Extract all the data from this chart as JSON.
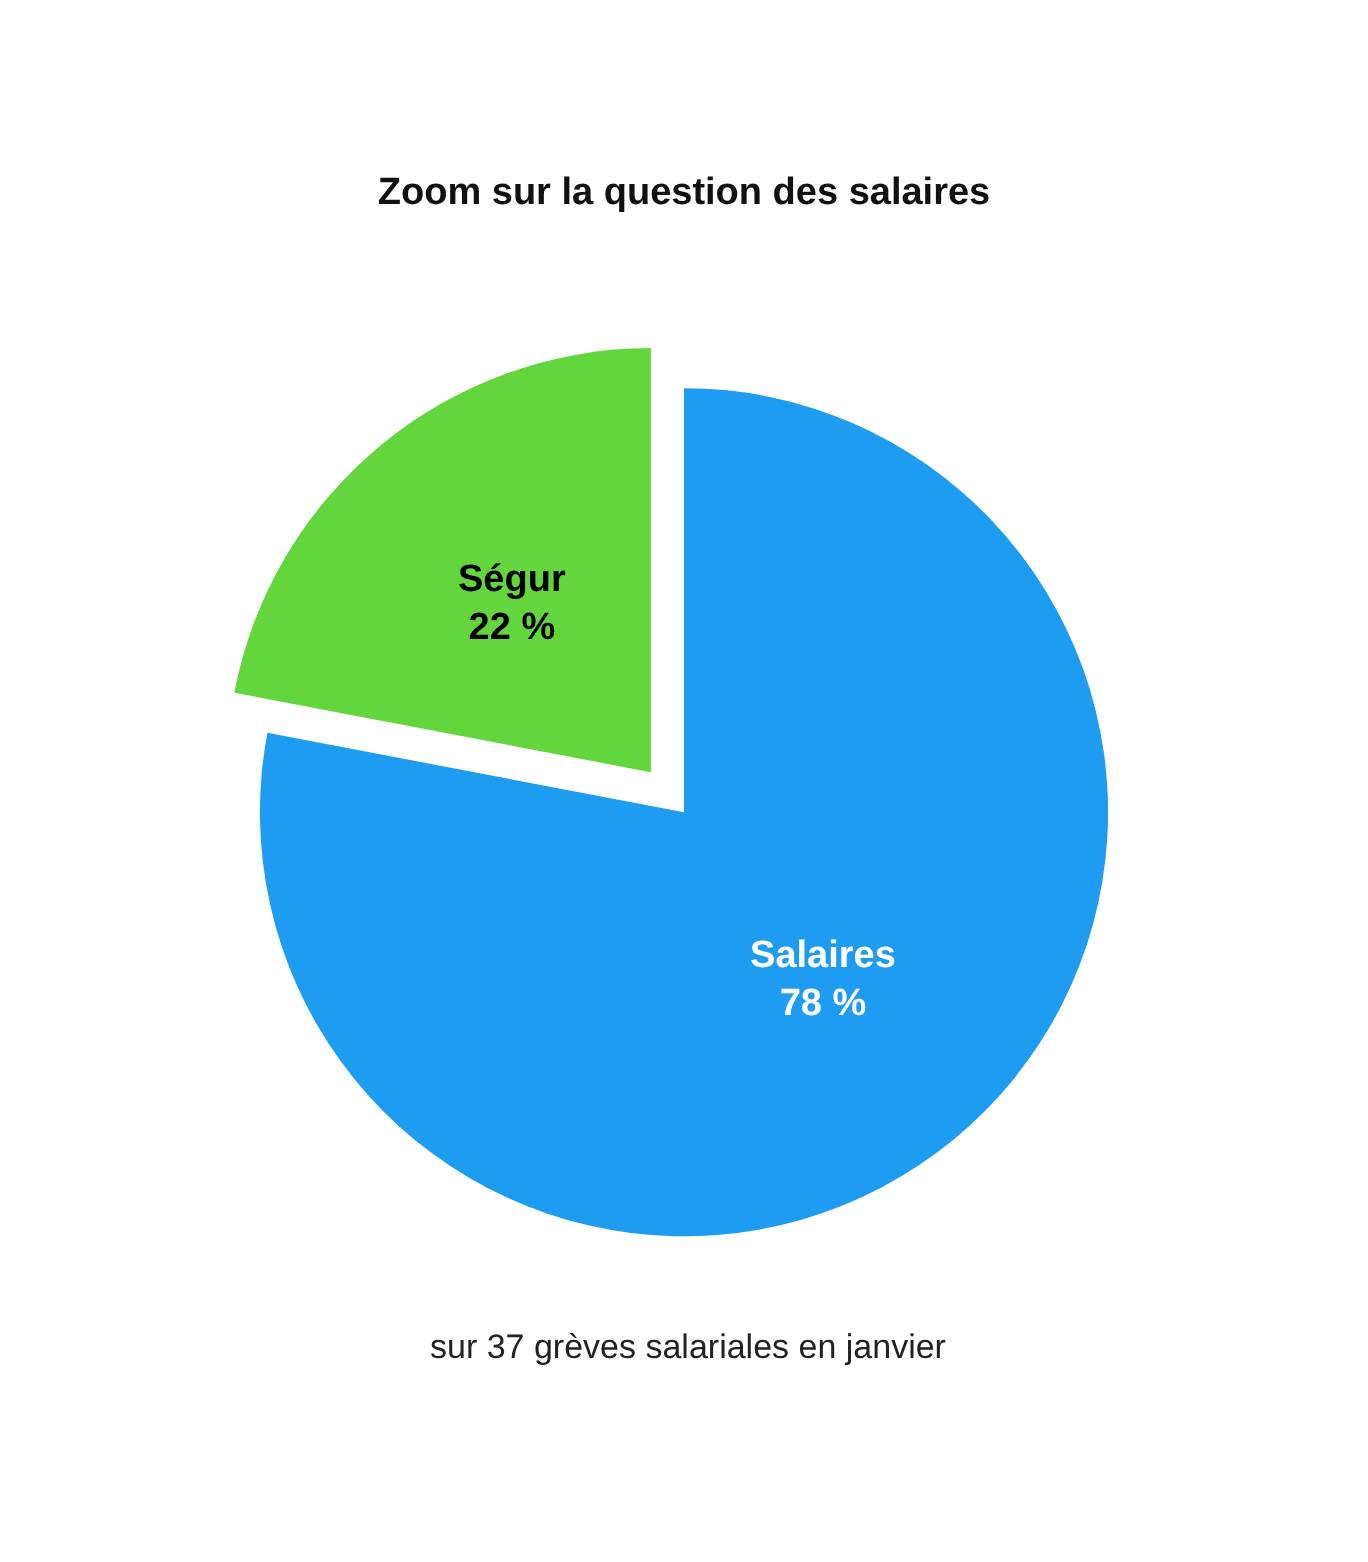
{
  "chart_data": {
    "type": "pie",
    "title": "Zoom sur la question des salaires",
    "categories": [
      "Salaires",
      "Ségur"
    ],
    "values": [
      78,
      22
    ],
    "value_labels": [
      "78 %",
      "22 %"
    ],
    "colors": [
      "#1e9cf2",
      "#62d63c"
    ],
    "annotations": [
      "sur 37 grèves salariales en janvier"
    ]
  }
}
